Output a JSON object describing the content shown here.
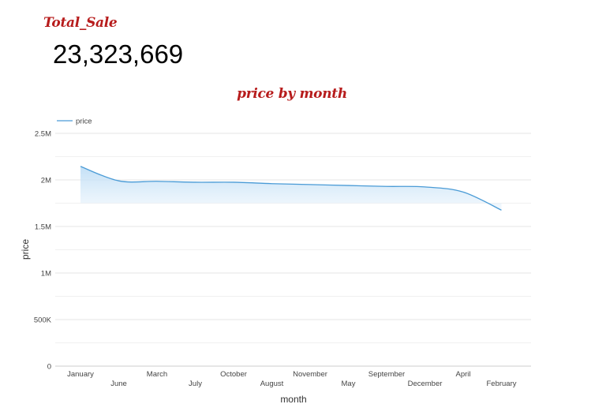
{
  "scorecard": {
    "title": "Total_Sale",
    "value": "23,323,669"
  },
  "chart_data": {
    "type": "area",
    "title": "price by month",
    "xlabel": "month",
    "ylabel": "price",
    "categories": [
      "January",
      "June",
      "March",
      "July",
      "October",
      "August",
      "November",
      "May",
      "September",
      "December",
      "April",
      "February"
    ],
    "series": [
      {
        "name": "price",
        "color": "#4285f4",
        "values": [
          2145000,
          1990000,
          1985000,
          1975000,
          1975000,
          1960000,
          1950000,
          1940000,
          1930000,
          1925000,
          1870000,
          1675000
        ]
      }
    ],
    "ylim": [
      0,
      2500000
    ],
    "yticks": [
      0,
      500000,
      1000000,
      1500000,
      2000000,
      2500000
    ],
    "ytick_labels": [
      "0",
      "500K",
      "1M",
      "1.5M",
      "2M",
      "2.5M"
    ],
    "grid": true,
    "legend": "top-left"
  }
}
